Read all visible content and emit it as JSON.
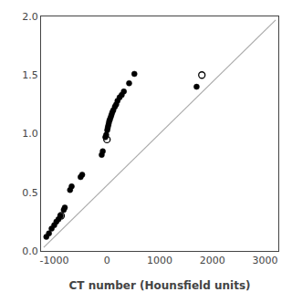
{
  "chart_data": {
    "type": "scatter",
    "xlabel": "CT number (Hounsfield units)",
    "xlim": [
      -1250,
      3250
    ],
    "ylim": [
      0,
      2.0
    ],
    "xticks": [
      -1000,
      0,
      1000,
      2000,
      3000
    ],
    "yticks": [
      {
        "value": 0,
        "label": "0.0"
      },
      0.5,
      {
        "value": 1.0,
        "label": "1.0"
      },
      1.5,
      {
        "value": 2.0,
        "label": "2.0"
      }
    ],
    "grid": false,
    "series": [
      {
        "type": "line",
        "color": "#aaaaaa",
        "line_style": "solid",
        "x": [
          -1200,
          3200
        ],
        "values": [
          0.03,
          1.97
        ]
      },
      {
        "type": "scatter",
        "color": "#000000",
        "marker": "circle",
        "x": [
          -1150,
          -1100,
          -1050,
          -1000,
          -960,
          -920,
          -880,
          -820,
          -800,
          -700,
          -670,
          -500,
          -470,
          -100,
          -80,
          -30,
          -15,
          5,
          15,
          25,
          35,
          45,
          55,
          70,
          85,
          100,
          120,
          150,
          175,
          200,
          240,
          280,
          320,
          420,
          520,
          1700
        ],
        "values": [
          0.12,
          0.15,
          0.19,
          0.22,
          0.25,
          0.27,
          0.3,
          0.35,
          0.37,
          0.52,
          0.55,
          0.63,
          0.65,
          0.82,
          0.85,
          0.97,
          0.99,
          1.03,
          1.05,
          1.07,
          1.09,
          1.11,
          1.12,
          1.14,
          1.16,
          1.18,
          1.2,
          1.23,
          1.25,
          1.28,
          1.31,
          1.33,
          1.36,
          1.43,
          1.51,
          1.4
        ]
      },
      {
        "type": "scatter",
        "color": "#000000",
        "marker": "circle-open",
        "x": [
          -870,
          0,
          1800
        ],
        "values": [
          0.3,
          0.95,
          1.5
        ]
      }
    ]
  }
}
